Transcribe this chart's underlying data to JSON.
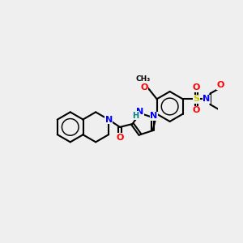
{
  "bg_color": "#efefef",
  "bond_color": "#000000",
  "bond_width": 1.5,
  "atom_colors": {
    "N": "#0000ff",
    "O": "#ff0000",
    "S": "#cccc00",
    "H": "#008080",
    "C": "#000000"
  }
}
